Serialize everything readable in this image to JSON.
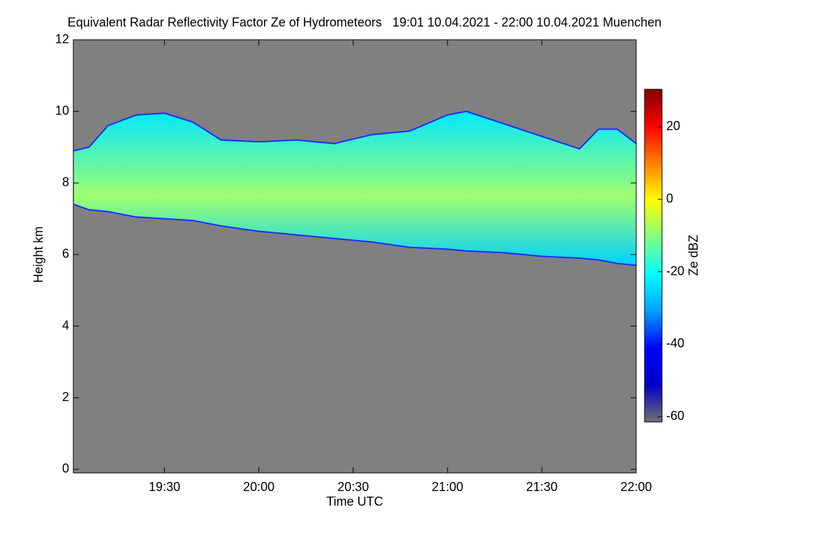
{
  "chart_data": {
    "type": "range-area",
    "title": "Equivalent Radar Reflectivity Factor Ze of Hydrometeors   19:01 10.04.2021 - 22:00 10.04.2021 Muenchen",
    "x_label": "Time UTC",
    "y_label": "Height km",
    "background": "#808080",
    "edge_color": "#1a2cff",
    "x": [
      19.02,
      19.1,
      19.2,
      19.35,
      19.5,
      19.65,
      19.8,
      20.0,
      20.2,
      20.4,
      20.6,
      20.8,
      21.0,
      21.1,
      21.3,
      21.5,
      21.7,
      21.8,
      21.9,
      22.0
    ],
    "upper": [
      8.9,
      9.0,
      9.6,
      9.9,
      9.95,
      9.7,
      9.2,
      9.15,
      9.2,
      9.1,
      9.35,
      9.45,
      9.9,
      10.0,
      9.65,
      9.3,
      8.95,
      9.5,
      9.5,
      9.1
    ],
    "lower": [
      7.4,
      7.25,
      7.2,
      7.05,
      7.0,
      6.95,
      6.8,
      6.65,
      6.55,
      6.45,
      6.35,
      6.2,
      6.15,
      6.1,
      6.05,
      5.95,
      5.9,
      5.85,
      5.75,
      5.7
    ],
    "xlim": [
      19.0167,
      22.0
    ],
    "xticks": [
      {
        "value": 19.5,
        "label": "19:30"
      },
      {
        "value": 20.0,
        "label": "20:00"
      },
      {
        "value": 20.5,
        "label": "20:30"
      },
      {
        "value": 21.0,
        "label": "21:00"
      },
      {
        "value": 21.5,
        "label": "21:30"
      },
      {
        "value": 22.0,
        "label": "22:00"
      }
    ],
    "ylim": [
      -0.1,
      12
    ],
    "yticks": [
      0,
      2,
      4,
      6,
      8,
      10,
      12
    ],
    "colorbar": {
      "label": "Ze dBZ",
      "lim": [
        -61.5,
        30.4
      ],
      "ticks": [
        -60,
        -40,
        -20,
        0,
        20
      ],
      "colors": [
        "#707070",
        "#0000c8",
        "#0000ff",
        "#00a0ff",
        "#00ffff",
        "#80ff80",
        "#ffff00",
        "#ff8000",
        "#ff0000",
        "#800000"
      ]
    }
  }
}
